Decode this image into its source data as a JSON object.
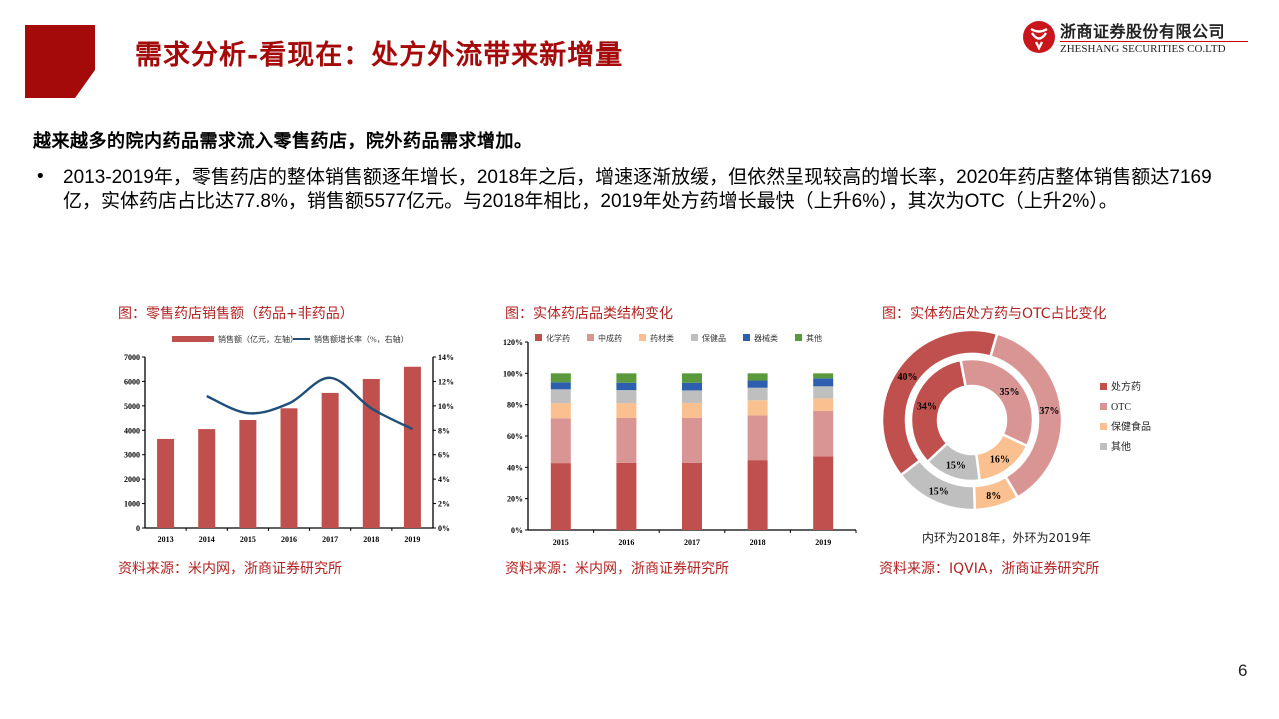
{
  "header": {
    "title": "需求分析-看现在：处方外流带来新增量",
    "brand_cn": "浙商证券股份有限公司",
    "brand_en": "ZHESHANG SECURITIES CO.LTD",
    "accent_color": "#a50a0a"
  },
  "body": {
    "headline": "越来越多的院内药品需求流入零售药店，院外药品需求增加。",
    "bullet_symbol": "•",
    "bullet_text": "2013-2019年，零售药店的整体销售额逐年增长，2018年之后，增速逐渐放缓，但依然呈现较高的增长率，2020年药店整体销售额达7169亿，实体药店占比达77.8%，销售额5577亿元。与2018年相比，2019年处方药增长最快（上升6%），其次为OTC（上升2%）。"
  },
  "figures": [
    {
      "title": "图：零售药店销售额（药品+非药品）",
      "source": "资料来源：米内网，浙商证券研究所"
    },
    {
      "title": "图：实体药店品类结构变化",
      "source": "资料来源：米内网，浙商证券研究所"
    },
    {
      "title": "图：实体药店处方药与OTC占比变化",
      "source": "资料来源：IQVIA，浙商证券研究所",
      "note": "内环为2018年，外环为2019年"
    }
  ],
  "chart_data": [
    {
      "type": "bar",
      "title": "图：零售药店销售额（药品+非药品）",
      "categories": [
        "2013",
        "2014",
        "2015",
        "2016",
        "2017",
        "2018",
        "2019"
      ],
      "series": [
        {
          "name": "销售额（亿元，左轴）",
          "type": "bar",
          "axis": "left",
          "color": "#c0504d",
          "values": [
            3646,
            4050,
            4420,
            4900,
            5530,
            6100,
            6600
          ]
        },
        {
          "name": "销售额增长率（%，右轴）",
          "type": "line",
          "axis": "right",
          "color": "#1f4e79",
          "values": [
            null,
            10.8,
            9.4,
            10.2,
            12.3,
            9.8,
            8.1
          ]
        }
      ],
      "y_left": {
        "ticks": [
          "0",
          "1000",
          "2000",
          "3000",
          "4000",
          "5000",
          "6000",
          "7000"
        ],
        "range": [
          0,
          7000
        ]
      },
      "y_right": {
        "ticks": [
          "0%",
          "2%",
          "4%",
          "6%",
          "8%",
          "10%",
          "12%",
          "14%"
        ],
        "range": [
          0,
          14
        ]
      },
      "legend_position": "top",
      "grid": false
    },
    {
      "type": "bar",
      "stacked": true,
      "title": "图：实体药店品类结构变化",
      "categories": [
        "2015",
        "2016",
        "2017",
        "2018",
        "2019"
      ],
      "series": [
        {
          "name": "化学药",
          "color": "#c0504d",
          "values": [
            42.7,
            42.9,
            42.8,
            44.6,
            47.0
          ]
        },
        {
          "name": "中成药",
          "color": "#d99594",
          "values": [
            28.6,
            28.6,
            28.7,
            28.6,
            29.0
          ]
        },
        {
          "name": "药材类",
          "color": "#fac090",
          "values": [
            9.7,
            9.5,
            9.6,
            9.6,
            8.0
          ]
        },
        {
          "name": "保健品",
          "color": "#bfbfbf",
          "values": [
            8.8,
            8.3,
            8.0,
            8.0,
            7.7
          ]
        },
        {
          "name": "器械类",
          "color": "#2e5fae",
          "values": [
            4.5,
            4.7,
            4.9,
            4.6,
            5.1
          ]
        },
        {
          "name": "其他",
          "color": "#5b9a3c",
          "values": [
            5.7,
            6.0,
            6.0,
            4.6,
            3.2
          ]
        }
      ],
      "y_ticks": [
        "0%",
        "20%",
        "40%",
        "60%",
        "80%",
        "100%",
        "120%"
      ],
      "ylim": [
        0,
        120
      ],
      "legend_position": "top",
      "grid": false
    },
    {
      "type": "pie",
      "variant": "donut-nested",
      "title": "图：实体药店处方药与OTC占比变化",
      "categories": [
        "处方药",
        "OTC",
        "保健食品",
        "其他"
      ],
      "colors": [
        "#c0504d",
        "#d99594",
        "#fac090",
        "#bfbfbf"
      ],
      "series": [
        {
          "name": "2018 (内环)",
          "values": [
            34,
            35,
            16,
            15
          ]
        },
        {
          "name": "2019 (外环)",
          "values": [
            40,
            37,
            8,
            15
          ]
        }
      ],
      "annotation": "内环为2018年，外环为2019年",
      "legend_position": "right"
    }
  ],
  "footer": {
    "page_number": "6"
  }
}
